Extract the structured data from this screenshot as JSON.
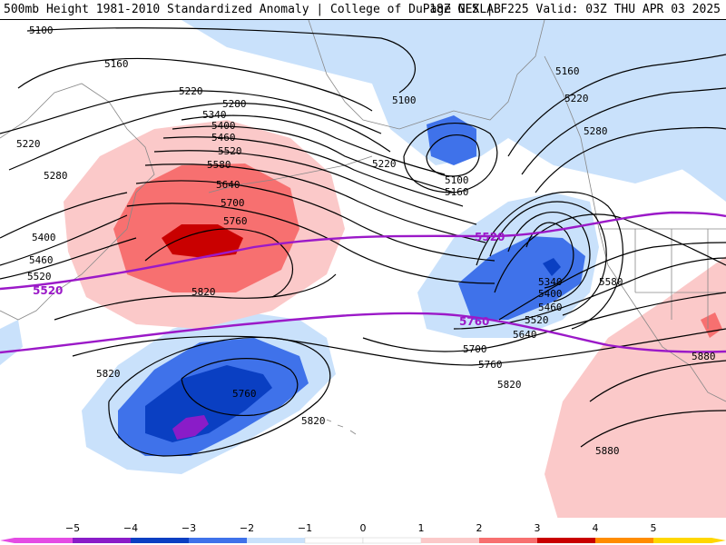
{
  "header": {
    "left": "500mb Height 1981-2010 Standardized Anomaly | College of DuPage NEXLAB",
    "right": "18Z GFS | F225 Valid: 03Z THU APR 03 2025"
  },
  "colors": {
    "neg5": "#e44ce4",
    "neg4": "#8a1cc8",
    "neg3": "#0a3fc2",
    "neg2": "#3f72ea",
    "neg1": "#c9e1fb",
    "zero": "#ffffff",
    "pos1": "#fbc9c9",
    "pos2": "#f77070",
    "pos3": "#c90000",
    "pos4": "#ff8c00",
    "pos5": "#ffd700",
    "contour": "#000000",
    "thickness": "#9b19c8",
    "land": "#888888"
  },
  "contour_labels": {
    "c5100a": "5100",
    "c5160a": "5160",
    "c5220a": "5220",
    "c5280a": "5280",
    "c5220b": "5220",
    "c5280b": "5280",
    "c5340a": "5340",
    "c5400a": "5400",
    "c5460a": "5460",
    "c5520a": "5520",
    "c5580a": "5580",
    "c5640a": "5640",
    "c5700a": "5700",
    "c5760a": "5760",
    "c5400b": "5400",
    "c5460b": "5460",
    "c5520b": "5520",
    "c5820a": "5820",
    "c5100b": "5100",
    "c5100c": "5100",
    "c5160b": "5160",
    "c5220c": "5220",
    "c5160c": "5160",
    "c5220d": "5220",
    "c5280c": "5280",
    "c5340b": "5340",
    "c5400c": "5400",
    "c5460c": "5460",
    "c5520c": "5520",
    "c5580b": "5580",
    "c5640b": "5640",
    "c5700b": "5700",
    "c5760b": "5760",
    "c5820b": "5820",
    "c5820c": "5820",
    "c5760c": "5760",
    "c5820d": "5820",
    "c5880a": "5880",
    "c5880b": "5880"
  },
  "thickness_labels": {
    "t5520a": "5520",
    "t5520b": "5520",
    "t5760": "5760"
  },
  "scale": {
    "ticks": [
      "−5",
      "−4",
      "−3",
      "−2",
      "−1",
      "0",
      "1",
      "2",
      "3",
      "4",
      "5"
    ]
  }
}
